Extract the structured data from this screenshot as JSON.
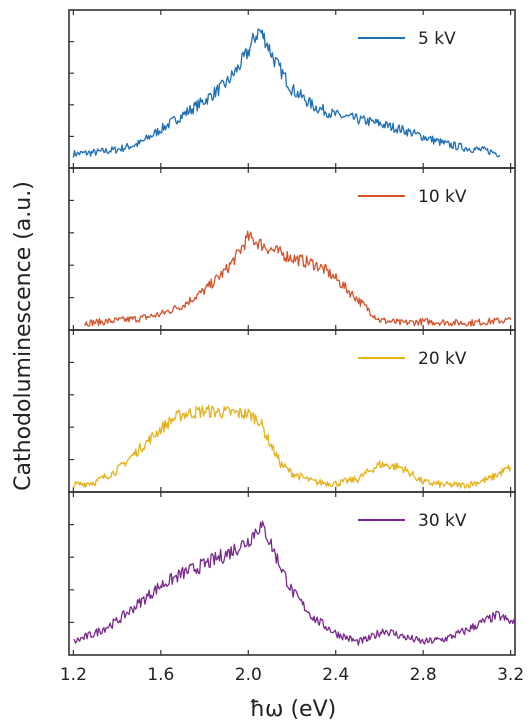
{
  "chart_data": {
    "type": "line",
    "xlabel": "ħω (eV)",
    "ylabel": "Cathodoluminescence (a.u.)",
    "xlim": [
      1.18,
      3.22
    ],
    "xticks": [
      1.2,
      1.6,
      2.0,
      2.4,
      2.8,
      3.2
    ],
    "xtick_labels": [
      "1.2",
      "1.6",
      "2.0",
      "2.4",
      "2.8",
      "3.2"
    ],
    "ylim": [
      0,
      1
    ],
    "grid": false,
    "legend_position": "top-right",
    "series": [
      {
        "name": "5 kV",
        "color": "#1f6fb5",
        "x": [
          1.2,
          1.3,
          1.4,
          1.5,
          1.6,
          1.7,
          1.8,
          1.9,
          1.95,
          2.0,
          2.03,
          2.05,
          2.08,
          2.12,
          2.2,
          2.3,
          2.4,
          2.5,
          2.6,
          2.7,
          2.8,
          2.9,
          3.0,
          3.1,
          3.15
        ],
        "y": [
          0.07,
          0.08,
          0.1,
          0.14,
          0.24,
          0.34,
          0.44,
          0.56,
          0.66,
          0.78,
          0.88,
          0.93,
          0.86,
          0.72,
          0.52,
          0.4,
          0.34,
          0.31,
          0.28,
          0.24,
          0.19,
          0.14,
          0.11,
          0.09,
          0.07
        ]
      },
      {
        "name": "10 kV",
        "color": "#d6542b",
        "x": [
          1.25,
          1.35,
          1.5,
          1.6,
          1.7,
          1.8,
          1.9,
          1.95,
          2.0,
          2.05,
          2.1,
          2.2,
          2.3,
          2.35,
          2.4,
          2.5,
          2.6,
          2.7,
          2.8,
          3.0,
          3.2
        ],
        "y": [
          0.02,
          0.03,
          0.05,
          0.08,
          0.14,
          0.24,
          0.38,
          0.48,
          0.6,
          0.56,
          0.52,
          0.46,
          0.42,
          0.38,
          0.32,
          0.18,
          0.04,
          0.02,
          0.03,
          0.02,
          0.04
        ]
      },
      {
        "name": "20 kV",
        "color": "#e6b21c",
        "x": [
          1.2,
          1.3,
          1.4,
          1.5,
          1.6,
          1.65,
          1.7,
          1.8,
          1.9,
          2.0,
          2.05,
          2.1,
          2.15,
          2.2,
          2.3,
          2.4,
          2.5,
          2.6,
          2.7,
          2.8,
          2.9,
          3.0,
          3.1,
          3.2
        ],
        "y": [
          0.02,
          0.04,
          0.12,
          0.26,
          0.4,
          0.46,
          0.5,
          0.52,
          0.51,
          0.5,
          0.46,
          0.3,
          0.16,
          0.1,
          0.04,
          0.03,
          0.06,
          0.16,
          0.14,
          0.04,
          0.02,
          0.02,
          0.06,
          0.14
        ]
      },
      {
        "name": "30 kV",
        "color": "#7a2a8e",
        "x": [
          1.2,
          1.3,
          1.4,
          1.5,
          1.6,
          1.7,
          1.8,
          1.9,
          2.0,
          2.03,
          2.05,
          2.08,
          2.12,
          2.2,
          2.3,
          2.4,
          2.5,
          2.55,
          2.62,
          2.7,
          2.8,
          2.9,
          3.0,
          3.08,
          3.14,
          3.22
        ],
        "y": [
          0.06,
          0.12,
          0.2,
          0.32,
          0.44,
          0.52,
          0.58,
          0.65,
          0.74,
          0.8,
          0.84,
          0.8,
          0.66,
          0.4,
          0.22,
          0.12,
          0.06,
          0.08,
          0.14,
          0.1,
          0.06,
          0.08,
          0.14,
          0.2,
          0.24,
          0.18
        ]
      }
    ]
  }
}
